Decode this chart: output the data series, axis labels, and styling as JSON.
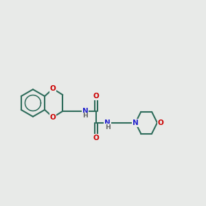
{
  "bg_color": "#e8eae8",
  "bond_color": "#2d6b5a",
  "atom_colors": {
    "O": "#cc0000",
    "N": "#2222cc",
    "H": "#666666"
  },
  "figsize": [
    3.0,
    3.0
  ],
  "dpi": 100,
  "lw": 1.5,
  "fs": 7.5
}
